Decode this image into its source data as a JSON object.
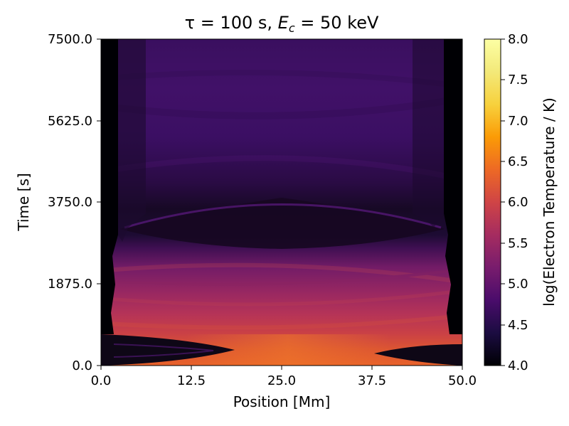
{
  "chart_data": {
    "type": "heatmap",
    "title": "τ = 100 s, E_c = 50 keV",
    "title_parts": {
      "tau": "τ",
      "tau_rest": " = 100 s, ",
      "e": "E",
      "e_sub": "c",
      "e_rest": " = 50 keV"
    },
    "xlabel": "Position [Mm]",
    "ylabel": "Time [s]",
    "xlim": [
      0,
      50
    ],
    "ylim": [
      0,
      7500
    ],
    "x_ticks": [
      0,
      12.5,
      25,
      37.5,
      50
    ],
    "x_tick_labels": [
      "0.0",
      "12.5",
      "25.0",
      "37.5",
      "50.0"
    ],
    "y_ticks": [
      0,
      1875,
      3750,
      5625,
      7500
    ],
    "y_tick_labels": [
      "0.0",
      "1875.0",
      "3750.0",
      "5625.0",
      "7500.0"
    ],
    "colorbar": {
      "label": "log(Electron Temperature / K)",
      "colormap": "inferno",
      "range": [
        4.0,
        8.0
      ],
      "ticks": [
        4.0,
        4.5,
        5.0,
        5.5,
        6.0,
        6.5,
        7.0,
        7.5,
        8.0
      ],
      "tick_labels": [
        "4.0",
        "4.5",
        "5.0",
        "5.5",
        "6.0",
        "6.5",
        "7.0",
        "7.5",
        "8.0"
      ]
    },
    "bands": [
      {
        "t_start": 0,
        "t_end": 700,
        "value": 6.1
      },
      {
        "t_start": 700,
        "t_end": 1300,
        "value": 5.8
      },
      {
        "t_start": 1300,
        "t_end": 2000,
        "value": 5.45
      },
      {
        "t_start": 2000,
        "t_end": 2800,
        "value": 5.1
      },
      {
        "t_start": 2800,
        "t_end": 4200,
        "value": 4.35
      },
      {
        "t_start": 4200,
        "t_end": 7500,
        "value": 4.85
      }
    ],
    "cold_footpoint_value": 4.0,
    "cold_eye_value": 4.3
  }
}
